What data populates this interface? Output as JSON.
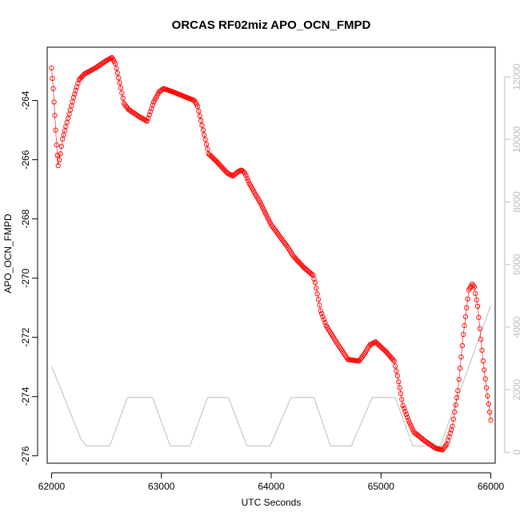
{
  "chart_data": {
    "type": "scatter",
    "title": "ORCAS RF02miz APO_OCN_FMPD",
    "xlabel": "UTC Seconds",
    "ylabel": "APO_OCN_FMPD",
    "xlim": [
      61960,
      66040
    ],
    "ylim": [
      -276.25,
      -262.2
    ],
    "y2lim": [
      -350,
      12950
    ],
    "x_ticks": [
      62000,
      63000,
      64000,
      65000,
      66000
    ],
    "y_ticks": [
      -276,
      -274,
      -272,
      -270,
      -268,
      -266,
      -264
    ],
    "y2_ticks": [
      0,
      2000,
      4000,
      6000,
      8000,
      10000,
      12000
    ],
    "series": [
      {
        "marker": "open-circle",
        "color": "#ff0000",
        "knots": [
          [
            62000,
            -262.9
          ],
          [
            62015,
            -263.6
          ],
          [
            62030,
            -264.5
          ],
          [
            62045,
            -265.5
          ],
          [
            62060,
            -266.2
          ],
          [
            62080,
            -265.8
          ],
          [
            62100,
            -265.3
          ],
          [
            62150,
            -264.6
          ],
          [
            62200,
            -263.9
          ],
          [
            62250,
            -263.3
          ],
          [
            62300,
            -263.1
          ],
          [
            62400,
            -262.9
          ],
          [
            62500,
            -262.65
          ],
          [
            62550,
            -262.55
          ],
          [
            62580,
            -262.75
          ],
          [
            62620,
            -263.4
          ],
          [
            62660,
            -264.1
          ],
          [
            62700,
            -264.3
          ],
          [
            62800,
            -264.55
          ],
          [
            62870,
            -264.7
          ],
          [
            62930,
            -264.05
          ],
          [
            62980,
            -263.7
          ],
          [
            63020,
            -263.6
          ],
          [
            63100,
            -263.7
          ],
          [
            63200,
            -263.85
          ],
          [
            63300,
            -264.0
          ],
          [
            63330,
            -264.2
          ],
          [
            63380,
            -265.0
          ],
          [
            63430,
            -265.8
          ],
          [
            63500,
            -266.05
          ],
          [
            63600,
            -266.45
          ],
          [
            63650,
            -266.55
          ],
          [
            63700,
            -266.4
          ],
          [
            63730,
            -266.35
          ],
          [
            63760,
            -266.45
          ],
          [
            63800,
            -266.8
          ],
          [
            63900,
            -267.45
          ],
          [
            64000,
            -268.2
          ],
          [
            64100,
            -268.7
          ],
          [
            64150,
            -268.95
          ],
          [
            64200,
            -269.25
          ],
          [
            64300,
            -269.65
          ],
          [
            64380,
            -269.9
          ],
          [
            64400,
            -270.15
          ],
          [
            64450,
            -271.1
          ],
          [
            64500,
            -271.6
          ],
          [
            64600,
            -272.2
          ],
          [
            64700,
            -272.75
          ],
          [
            64800,
            -272.8
          ],
          [
            64850,
            -272.55
          ],
          [
            64900,
            -272.25
          ],
          [
            64950,
            -272.15
          ],
          [
            65050,
            -272.5
          ],
          [
            65120,
            -272.8
          ],
          [
            65150,
            -273.3
          ],
          [
            65200,
            -274.3
          ],
          [
            65250,
            -274.8
          ],
          [
            65300,
            -275.2
          ],
          [
            65400,
            -275.5
          ],
          [
            65500,
            -275.75
          ],
          [
            65560,
            -275.8
          ],
          [
            65600,
            -275.6
          ],
          [
            65650,
            -275.0
          ],
          [
            65700,
            -273.8
          ],
          [
            65750,
            -271.9
          ],
          [
            65800,
            -270.4
          ],
          [
            65830,
            -270.2
          ],
          [
            65850,
            -270.3
          ],
          [
            65880,
            -270.95
          ],
          [
            65900,
            -271.7
          ],
          [
            65930,
            -272.8
          ],
          [
            65960,
            -273.7
          ],
          [
            66000,
            -274.8
          ]
        ]
      },
      {
        "axis": "right",
        "color": "#bebebe",
        "x": [
          62000,
          62270,
          62320,
          62530,
          62690,
          62770,
          62920,
          63080,
          63140,
          63260,
          63420,
          63480,
          63610,
          63780,
          63850,
          63990,
          64180,
          64240,
          64390,
          64540,
          64570,
          64730,
          64920,
          64970,
          65130,
          65290,
          65330,
          65470,
          65540,
          66000
        ],
        "y": [
          2750,
          400,
          200,
          200,
          1750,
          1750,
          1750,
          200,
          200,
          200,
          1750,
          1750,
          1750,
          200,
          200,
          200,
          1750,
          1750,
          1750,
          200,
          200,
          200,
          1750,
          1750,
          1750,
          200,
          200,
          200,
          200,
          4700
        ]
      }
    ]
  }
}
